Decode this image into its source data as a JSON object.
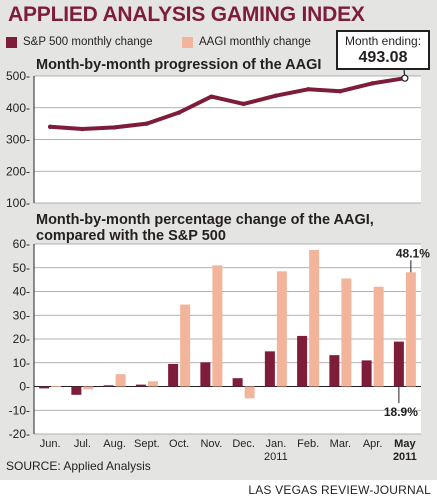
{
  "title": "APPLIED ANALYSIS GAMING INDEX",
  "legend": {
    "sp500": {
      "label": "S&P 500 monthly change",
      "color": "#7d1d3a"
    },
    "aagi": {
      "label": "AAGI monthly change",
      "color": "#f2b59b"
    }
  },
  "callout": {
    "label": "Month ending:",
    "value": "493.08"
  },
  "source": "SOURCE: Applied Analysis",
  "credit": "LAS VEGAS REVIEW-JOURNAL",
  "chart_data": [
    {
      "type": "line",
      "title": "Month-by-month progression of the AAGI",
      "ylim": [
        100,
        500
      ],
      "yticks": [
        100,
        200,
        300,
        400,
        500
      ],
      "x": [
        "Jun.",
        "Jul.",
        "Aug.",
        "Sept.",
        "Oct.",
        "Nov.",
        "Dec.",
        "Jan. 2011",
        "Feb.",
        "Mar.",
        "Apr.",
        "May 2011"
      ],
      "values": [
        340,
        333,
        338,
        350,
        385,
        435,
        412,
        438,
        458,
        452,
        477,
        493.08
      ],
      "color": "#7d1d3a"
    },
    {
      "type": "bar",
      "title": "Month-by-month percentage change of the AAGI, compared with the S&P 500",
      "ylim": [
        -20,
        60
      ],
      "yticks": [
        -20,
        -10,
        0,
        10,
        20,
        30,
        40,
        50,
        60
      ],
      "categories": [
        "Jun.",
        "Jul.",
        "Aug.",
        "Sept.",
        "Oct.",
        "Nov.",
        "Dec.",
        "Jan.",
        "Feb.",
        "Mar.",
        "Apr.",
        "May"
      ],
      "category_years": [
        "",
        "",
        "",
        "",
        "",
        "",
        "",
        "2011",
        "",
        "",
        "",
        "2011"
      ],
      "series": [
        {
          "name": "S&P 500 monthly change",
          "color": "#7d1d3a",
          "values": [
            -0.8,
            -3.5,
            0.5,
            0.8,
            9.5,
            10.2,
            3.5,
            14.8,
            21.3,
            13.2,
            11.0,
            18.9
          ]
        },
        {
          "name": "AAGI monthly change",
          "color": "#f2b59b",
          "values": [
            0.2,
            -1.2,
            5.2,
            2.2,
            34.5,
            51.0,
            -5.0,
            48.5,
            57.5,
            45.5,
            42.0,
            48.1
          ]
        }
      ],
      "annotations": [
        {
          "text": "48.1%",
          "series": "AAGI monthly change",
          "category": "May"
        },
        {
          "text": "18.9%",
          "series": "S&P 500 monthly change",
          "category": "May"
        }
      ]
    }
  ]
}
